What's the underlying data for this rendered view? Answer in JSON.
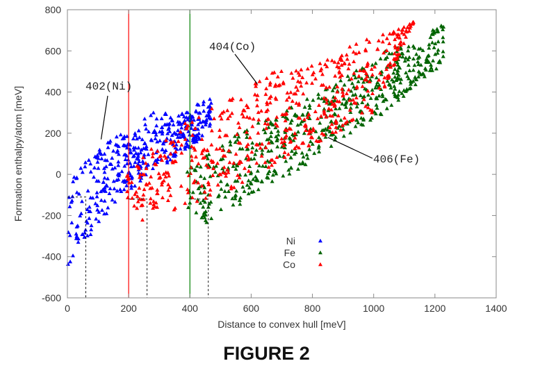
{
  "figure": {
    "caption": "FIGURE 2"
  },
  "chart_data": {
    "type": "scatter",
    "xlabel": "Distance to convex hull [meV]",
    "ylabel": "Formation enthalpy/atom [meV]",
    "xlim": [
      0,
      1400
    ],
    "ylim": [
      -600,
      800
    ],
    "xticks": [
      0,
      200,
      400,
      600,
      800,
      1000,
      1200,
      1400
    ],
    "yticks": [
      -600,
      -400,
      -200,
      0,
      200,
      400,
      600,
      800
    ],
    "grid": false,
    "legend_position": "lower-center",
    "series": [
      {
        "name": "Ni",
        "color": "#0000ff",
        "marker": "triangle",
        "x": [
          0,
          10,
          20,
          40,
          60,
          80,
          100,
          120,
          140,
          160,
          180,
          200,
          220,
          240,
          260,
          280,
          300,
          330,
          360,
          400,
          440,
          470
        ],
        "y_min": [
          -480,
          -470,
          -430,
          -380,
          -330,
          -290,
          -250,
          -210,
          -170,
          -140,
          -110,
          -80,
          -60,
          -40,
          -20,
          0,
          30,
          60,
          90,
          130,
          180,
          220
        ],
        "y_max": [
          -60,
          -20,
          0,
          30,
          60,
          90,
          120,
          150,
          170,
          190,
          200,
          200,
          210,
          250,
          290,
          300,
          300,
          300,
          300,
          300,
          380,
          380
        ]
      },
      {
        "name": "Fe",
        "color": "#006400",
        "marker": "triangle",
        "x": [
          390,
          420,
          460,
          500,
          550,
          600,
          650,
          700,
          750,
          800,
          850,
          900,
          950,
          1000,
          1050,
          1100,
          1150,
          1200,
          1230
        ],
        "y_min": [
          -200,
          -200,
          -240,
          -220,
          -160,
          -110,
          -60,
          -20,
          20,
          60,
          110,
          160,
          220,
          260,
          320,
          380,
          450,
          500,
          560
        ],
        "y_max": [
          20,
          60,
          100,
          140,
          200,
          240,
          270,
          300,
          340,
          380,
          420,
          470,
          520,
          560,
          610,
          620,
          640,
          730,
          740
        ]
      },
      {
        "name": "Co",
        "color": "#ff0000",
        "marker": "triangle",
        "x": [
          190,
          210,
          240,
          280,
          320,
          360,
          400,
          450,
          500,
          550,
          600,
          650,
          700,
          750,
          800,
          850,
          900,
          950,
          1000,
          1130
        ],
        "y_min": [
          -150,
          -170,
          -230,
          -210,
          -200,
          -180,
          -160,
          -130,
          -100,
          -60,
          -20,
          20,
          60,
          100,
          140,
          180,
          220,
          270,
          300,
          740
        ],
        "y_max": [
          -10,
          20,
          80,
          130,
          170,
          220,
          270,
          310,
          350,
          400,
          440,
          490,
          510,
          520,
          540,
          580,
          620,
          650,
          660,
          740
        ]
      }
    ],
    "reference_lines": [
      {
        "x": 200,
        "color": "#ff0000"
      },
      {
        "x": 400,
        "color": "#008000"
      }
    ],
    "dashed_boxes": [
      {
        "x0": 0,
        "x1": 60,
        "y_top": -110
      },
      {
        "x0": 200,
        "x1": 260,
        "y_top": -120
      },
      {
        "x0": 400,
        "x1": 460,
        "y_top": -120
      }
    ],
    "annotations": [
      {
        "text": "402(Ni)",
        "pointer": [
          110,
          170
        ]
      },
      {
        "text": "404(Co)",
        "pointer": [
          620,
          440
        ]
      },
      {
        "text": "406(Fe)",
        "pointer": [
          850,
          180
        ]
      }
    ]
  }
}
